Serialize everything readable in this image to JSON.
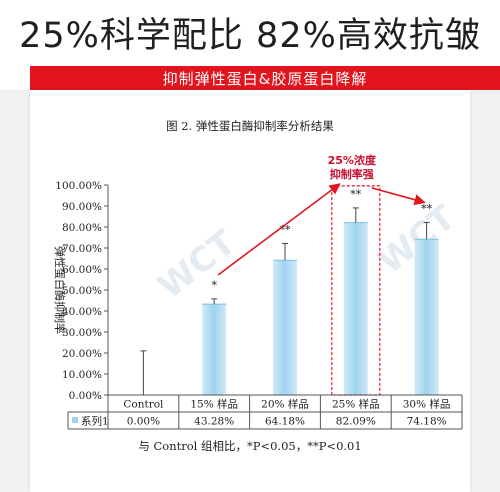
{
  "headline": "25%科学配比  82%高效抗皱",
  "banner": "抑制弹性蛋白&胶原蛋白降解",
  "watermark": "WCT",
  "chart_data": {
    "type": "bar",
    "title": "图 2. 弹性蛋白酶抑制率分析结果",
    "ylabel": "弹性蛋白酶抑制率",
    "ylim": [
      0,
      100
    ],
    "yticks": [
      "0.00%",
      "10.00%",
      "20.00%",
      "30.00%",
      "40.00%",
      "50.00%",
      "60.00%",
      "70.00%",
      "80.00%",
      "90.00%",
      "100.00%"
    ],
    "categories": [
      "Control",
      "15% 样品",
      "20% 样品",
      "25% 样品",
      "30% 样品"
    ],
    "series": [
      {
        "name": "系列1",
        "values": [
          0.0,
          43.28,
          64.18,
          82.09,
          74.18
        ],
        "value_labels": [
          "0.00%",
          "43.28%",
          "64.18%",
          "82.09%",
          "74.18%"
        ],
        "error": [
          21,
          2.5,
          8,
          7,
          8
        ]
      }
    ],
    "significance": [
      "",
      "*",
      "**",
      "**",
      "**"
    ],
    "annotation": {
      "line1": "25%浓度",
      "line2": "抑制率强"
    },
    "color": "#9fd3ee",
    "highlight_color": "#e2151f",
    "grid": false,
    "legend": "data-table"
  },
  "footnote": "与 Control 组相比，*P<0.05，**P<0.01"
}
